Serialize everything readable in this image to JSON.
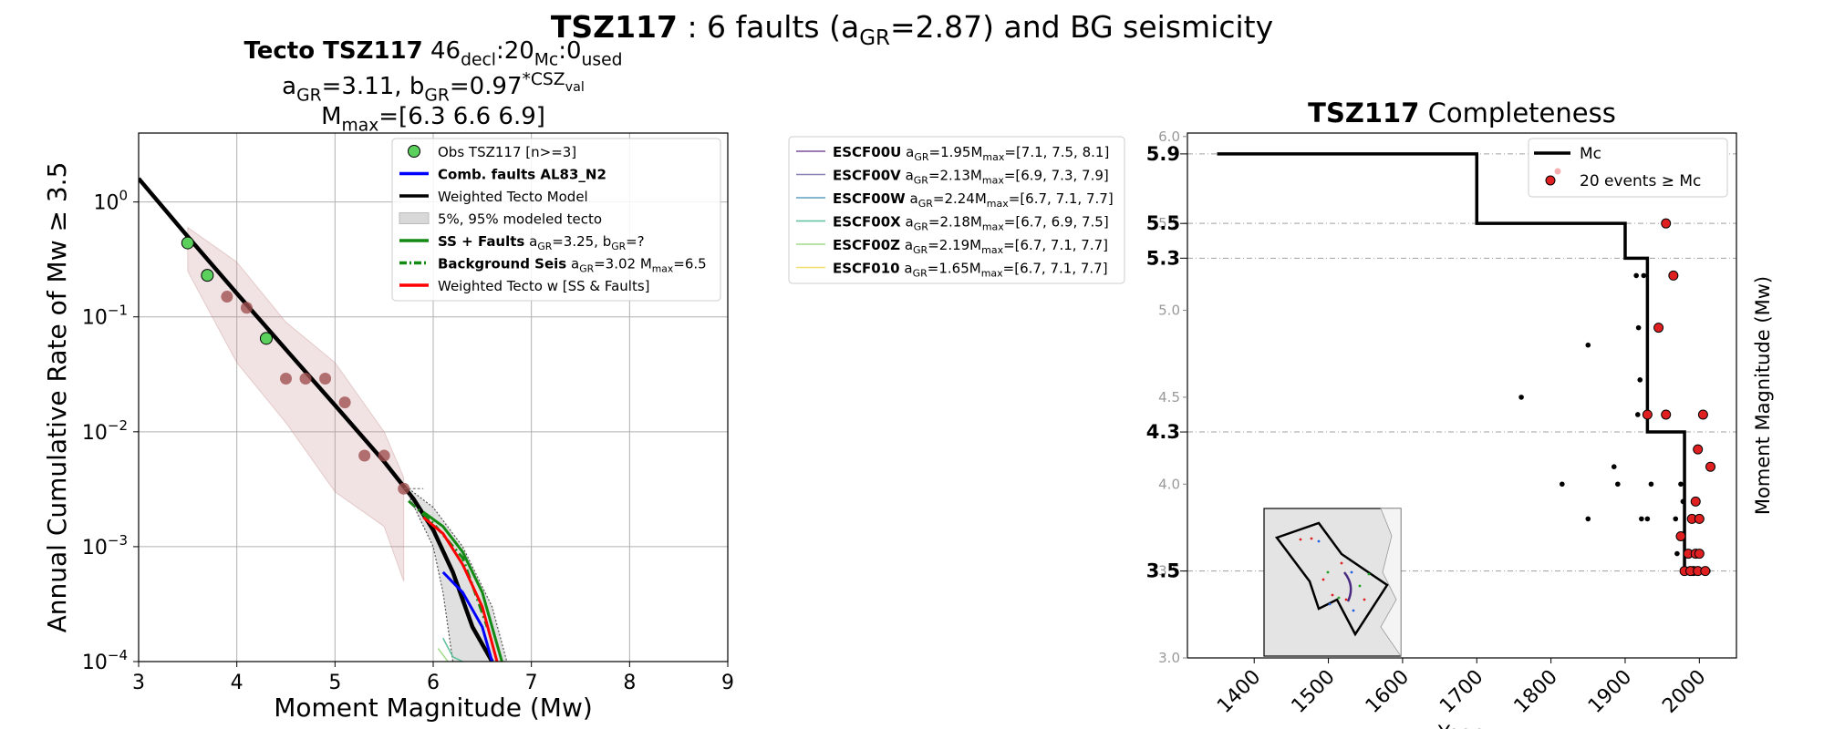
{
  "suptitle": {
    "name": "TSZ117",
    "pre": " : 6 faults (a",
    "sub": "GR",
    "post": "=2.87) and BG seismicity"
  },
  "left": {
    "title_lines": [
      [
        {
          "t": "Tecto TSZ117",
          "bold": true
        },
        {
          "t": "  46"
        },
        {
          "t": "decl",
          "sub": true
        },
        {
          "t": ":20"
        },
        {
          "t": "Mc",
          "sub": true
        },
        {
          "t": ":0"
        },
        {
          "t": "used",
          "sub": true
        }
      ],
      [
        {
          "t": "a"
        },
        {
          "t": "GR",
          "sub": true
        },
        {
          "t": "=3.11,  b"
        },
        {
          "t": "GR",
          "sub": true
        },
        {
          "t": "=0.97"
        },
        {
          "t": "*CSZ",
          "sup": true
        },
        {
          "t": "val",
          "supsub": true
        }
      ],
      [
        {
          "t": "M"
        },
        {
          "t": "max",
          "sub": true
        },
        {
          "t": "=[6.3 6.6 6.9]"
        }
      ]
    ],
    "xlabel": "Moment Magnitude (Mw)",
    "ylabel": "Annual Cumulative Rate of Mw  ≥  3.5",
    "xlim": [
      3,
      9
    ],
    "ylim_log10": [
      -4,
      0.6
    ],
    "xticks": [
      3,
      4,
      5,
      6,
      7,
      8,
      9
    ],
    "yticks": [
      {
        "base": "10",
        "exp": "−4",
        "v": -4
      },
      {
        "base": "10",
        "exp": "−3",
        "v": -3
      },
      {
        "base": "10",
        "exp": "−2",
        "v": -2
      },
      {
        "base": "10",
        "exp": "−1",
        "v": -1
      },
      {
        "base": "10",
        "exp": "0",
        "v": 0
      }
    ],
    "legend": [
      {
        "kind": "marker",
        "color": "#5cd05c",
        "parts": [
          {
            "t": "Obs TSZ117 [n>=3]"
          }
        ]
      },
      {
        "kind": "line",
        "color": "#0000ff",
        "parts": [
          {
            "t": "Comb. faults AL83_N2",
            "bold": true
          }
        ]
      },
      {
        "kind": "line",
        "color": "#000000",
        "parts": [
          {
            "t": "Weighted Tecto Model"
          }
        ]
      },
      {
        "kind": "patch",
        "color": "#d8d8d8",
        "parts": [
          {
            "t": "5%, 95% modeled tecto"
          }
        ]
      },
      {
        "kind": "line",
        "color": "#138a13",
        "parts": [
          {
            "t": "SS + Faults",
            "bold": true
          },
          {
            "t": " a"
          },
          {
            "t": "GR",
            "sub": true
          },
          {
            "t": "=3.25,  b"
          },
          {
            "t": "GR",
            "sub": true
          },
          {
            "t": "=?"
          }
        ]
      },
      {
        "kind": "dashdot",
        "color": "#138a13",
        "parts": [
          {
            "t": "Background Seis",
            "bold": true
          },
          {
            "t": " a"
          },
          {
            "t": "GR",
            "sub": true
          },
          {
            "t": "=3.02 M"
          },
          {
            "t": "max",
            "sub": true
          },
          {
            "t": "=6.5"
          }
        ]
      },
      {
        "kind": "line",
        "color": "#ff0000",
        "parts": [
          {
            "t": "Weighted Tecto w [SS & Faults]"
          }
        ]
      }
    ]
  },
  "middle_legend": [
    {
      "color": "#7b4e9e",
      "name": "ESCF00U",
      "a": "=1.95M",
      "mmax": "=[7.1, 7.5, 8.1]"
    },
    {
      "color": "#8a82b8",
      "name": "ESCF00V",
      "a": "=2.13M",
      "mmax": "=[6.9, 7.3, 7.9]"
    },
    {
      "color": "#5a9fc4",
      "name": "ESCF00W",
      "a": "=2.24M",
      "mmax": "=[6.7, 7.1, 7.7]"
    },
    {
      "color": "#5cc09a",
      "name": "ESCF00X",
      "a": "=2.18M",
      "mmax": "=[6.7, 6.9, 7.5]"
    },
    {
      "color": "#a3dc8a",
      "name": "ESCF00Z",
      "a": "=2.19M",
      "mmax": "=[6.7, 7.1, 7.7]"
    },
    {
      "color": "#f2e06a",
      "name": "ESCF010",
      "a": "=1.65M",
      "mmax": "=[6.7, 7.1, 7.7]"
    }
  ],
  "right": {
    "title_bold": "TSZ117",
    "title_rest": " Completeness",
    "xlabel": "Year",
    "ylabel": "Moment Magnitude (Mw)",
    "xlim": [
      1310,
      2050
    ],
    "ylim": [
      3.0,
      6.02
    ],
    "xticks": [
      1400,
      1500,
      1600,
      1700,
      1800,
      1900,
      2000
    ],
    "yticks_minor": [
      3.0,
      3.5,
      4.0,
      4.5,
      5.0,
      5.5,
      6.0
    ],
    "yticks_major": [
      3.5,
      4.3,
      5.3,
      5.5,
      5.9
    ],
    "legend": [
      {
        "kind": "line",
        "label": "Mc"
      },
      {
        "kind": "marker",
        "label": "20 events ≥  Mc"
      }
    ]
  },
  "chart_data": [
    {
      "type": "line",
      "title": "Tecto TSZ117  46decl:20Mc:0used | aGR=3.11, bGR=0.97*CSZval | Mmax=[6.3 6.6 6.9]",
      "xlabel": "Moment Magnitude (Mw)",
      "ylabel": "Annual Cumulative Rate of Mw  ≥  3.5",
      "xlim": [
        3,
        9
      ],
      "ylim": [
        0.0001,
        4.0
      ],
      "yscale": "log",
      "grid": true,
      "legend_position": "top-right",
      "series": [
        {
          "name": "Weighted Tecto Model",
          "color": "#000000",
          "x": [
            3.0,
            3.5,
            4.0,
            4.5,
            5.0,
            5.5,
            5.8,
            6.0,
            6.2,
            6.4,
            6.6
          ],
          "y": [
            1.6,
            0.5,
            0.16,
            0.052,
            0.017,
            0.0055,
            0.0026,
            0.0014,
            0.0006,
            0.0002,
            0.0001
          ]
        },
        {
          "name": "Comb. faults AL83_N2",
          "color": "#0000ff",
          "x": [
            6.1,
            6.3,
            6.5,
            6.6
          ],
          "y": [
            0.0006,
            0.0004,
            0.0002,
            0.0001
          ]
        },
        {
          "name": "SS + Faults",
          "color": "#138a13",
          "x": [
            5.9,
            6.1,
            6.3,
            6.5,
            6.7
          ],
          "y": [
            0.002,
            0.0015,
            0.0009,
            0.0004,
            0.0001
          ]
        },
        {
          "name": "Background Seis",
          "color": "#138a13",
          "x": [
            5.75,
            6.0,
            6.3,
            6.55
          ],
          "y": [
            0.0025,
            0.0016,
            0.0008,
            0.0002
          ]
        },
        {
          "name": "Weighted Tecto w [SS & Faults]",
          "color": "#ff0000",
          "x": [
            5.9,
            6.1,
            6.3,
            6.5,
            6.65
          ],
          "y": [
            0.0018,
            0.0013,
            0.0007,
            0.0003,
            0.0001
          ]
        },
        {
          "name": "5%, 95% modeled tecto (lower)",
          "color": "#555555",
          "x": [
            5.75,
            6.0,
            6.1,
            6.2
          ],
          "y": [
            0.0028,
            0.001,
            0.0004,
            0.0001
          ]
        },
        {
          "name": "5%, 95% modeled tecto (upper)",
          "color": "#555555",
          "x": [
            5.75,
            6.0,
            6.3,
            6.6,
            6.75
          ],
          "y": [
            0.0032,
            0.0022,
            0.001,
            0.0003,
            0.0001
          ]
        },
        {
          "name": "ESCF00X",
          "color": "#5cc09a",
          "x": [
            6.1,
            6.2,
            6.3
          ],
          "y": [
            0.00016,
            0.00011,
            0.0001
          ]
        },
        {
          "name": "ESCF00Z",
          "color": "#a3dc8a",
          "x": [
            6.05,
            6.15,
            6.25
          ],
          "y": [
            0.00013,
            0.0001,
            9e-05
          ]
        }
      ],
      "points_obs": {
        "name": "Obs TSZ117 [n>=3]",
        "color": "#5cd05c",
        "x": [
          3.5,
          3.7,
          4.3
        ],
        "y": [
          0.44,
          0.23,
          0.065
        ]
      },
      "points_other": {
        "color": "#a05050",
        "x": [
          3.9,
          4.1,
          4.5,
          4.7,
          4.9,
          5.1,
          5.3,
          5.5,
          5.7
        ],
        "y": [
          0.15,
          0.12,
          0.029,
          0.029,
          0.029,
          0.018,
          0.0062,
          0.0062,
          0.0032
        ]
      },
      "uncertainty_band": {
        "color": "#c89090",
        "x": [
          3.5,
          4.0,
          4.5,
          5.0,
          5.5,
          5.7
        ],
        "upper": [
          0.6,
          0.3,
          0.09,
          0.04,
          0.01,
          0.004
        ],
        "lower": [
          0.25,
          0.04,
          0.012,
          0.003,
          0.0015,
          0.0005
        ]
      }
    },
    {
      "type": "scatter",
      "title": "TSZ117 Completeness",
      "xlabel": "Year",
      "ylabel": "Moment Magnitude (Mw)",
      "xlim": [
        1310,
        2050
      ],
      "ylim": [
        3.0,
        6.0
      ],
      "legend_position": "top-right",
      "mc_step": {
        "name": "Mc",
        "x": [
          1350,
          1700,
          1700,
          1900,
          1900,
          1930,
          1930,
          1980,
          1980,
          2015
        ],
        "y": [
          5.9,
          5.9,
          5.5,
          5.5,
          5.3,
          5.3,
          4.3,
          4.3,
          3.5,
          3.5
        ]
      },
      "events_above_mc": {
        "name": "20 events ≥  Mc",
        "color": "#e02020",
        "x": [
          1955,
          1965,
          1945,
          1930,
          1955,
          2005,
          1998,
          2015,
          1995,
          1990,
          1975,
          2000,
          1985,
          1995,
          1980,
          1992,
          2000,
          1988,
          1998,
          2008
        ],
        "y": [
          5.5,
          5.2,
          4.9,
          4.4,
          4.4,
          4.4,
          4.2,
          4.1,
          3.9,
          3.8,
          3.7,
          3.8,
          3.6,
          3.6,
          3.5,
          3.5,
          3.6,
          3.5,
          3.5,
          3.5
        ]
      },
      "events_below_mc": {
        "color": "#000000",
        "x": [
          1760,
          1850,
          1815,
          1850,
          1885,
          1890,
          1915,
          1918,
          1920,
          1925,
          1917,
          1922,
          1930,
          1935,
          1975,
          1972,
          1970,
          1968,
          1978
        ],
        "y": [
          4.5,
          4.8,
          4.0,
          3.8,
          4.1,
          4.0,
          5.2,
          4.9,
          4.6,
          5.2,
          4.4,
          3.8,
          3.8,
          4.0,
          4.0,
          3.7,
          3.6,
          3.8,
          3.9
        ]
      }
    }
  ]
}
